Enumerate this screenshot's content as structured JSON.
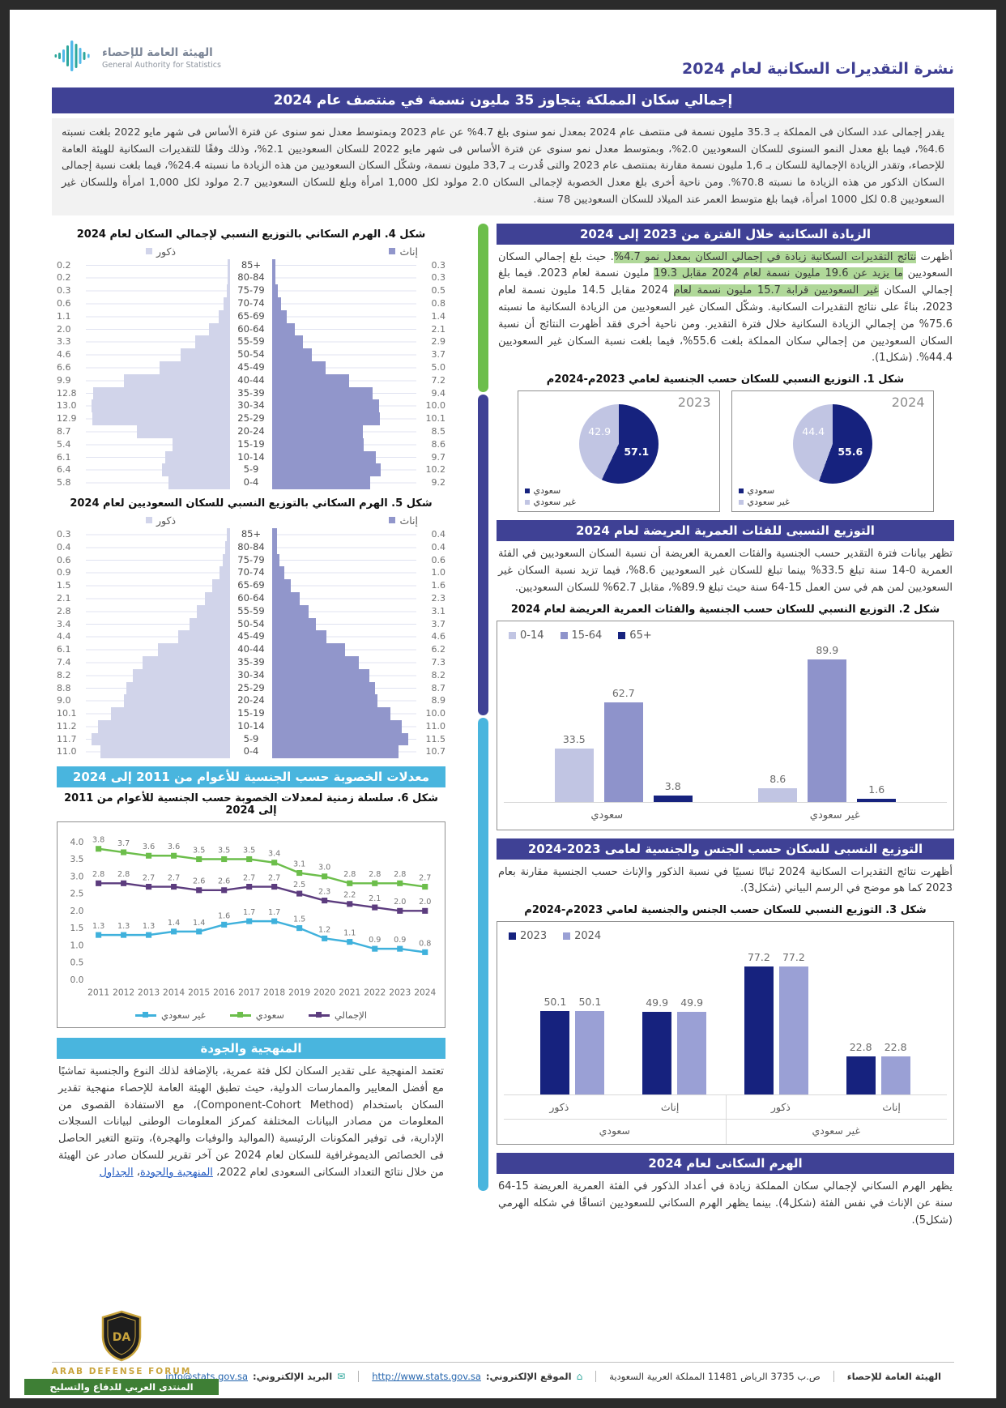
{
  "frame": {
    "bulletin_title": "نشرة التقديرات السكانية لعام 2024",
    "logo": {
      "ar": "الهيئة العامة للإحصاء",
      "en": "General Authority for Statistics"
    },
    "headline": "إجمالي سكان المملكة يتجاوز 35 مليون نسمة في منتصف عام 2024",
    "intro": "يقدر إجمالى عدد السكان فى المملكة بـ 35.3 مليون نسمة فى منتصف عام 2024 بمعدل نمو سنوى بلغ 4.7% عن عام 2023 وبمتوسط معدل نمو سنوى عن فترة الأساس فى شهر مايو 2022 بلغت نسبته 4.6%، فيما بلغ معدل النمو السنوى للسكان السعوديين 2.0%، وبمتوسط معدل نمو سنوى عن فترة الأساس فى شهر مايو 2022 للسكان السعوديين 2.1%، وذلك وفقًا للتقديرات السكانية للهيئة العامة للإحصاء، وتقدر الزيادة الإجمالية للسكان بـ 1,6 مليون نسمة مقارنة بمنتصف عام 2023 والتى قُدرت بـ 33,7 مليون نسمة، وشكّل السكان السعوديين من هذه الزيادة ما نسبته 24.4%، فيما بلغت نسبة إجمالى السكان الذكور من هذه الزيادة ما نسبته 70.8%. ومن ناحية أخرى بلغ معدل الخصوبة لإجمالى السكان 2.0 مولود لكل 1,000 امرأة وبلغ للسكان السعوديين 2.7 مولود لكل 1,000 امرأة وللسكان غير السعوديين 0.8 لكل 1000 امرأة، فيما بلغ متوسط العمر عند الميلاد للسكان السعوديين 78 سنة."
  },
  "theme": {
    "indigo": "#3f4195",
    "banner_cyan": "#49b5de",
    "navy": "#16227e",
    "lavender": "#c1c5e3",
    "midpurple": "#8e93cb",
    "bar2024": "#9aa0d5",
    "pyr_male": "#d1d4ea",
    "pyr_female": "#9196cb",
    "green": "#6cbe4b",
    "cyan": "#3fb1dc",
    "purple": "#5c3c7e",
    "highlight": "#7cbe55"
  },
  "sections": {
    "increase": {
      "title": "الزيادة السكانية خلال الفترة من 2023 إلى 2024",
      "body_segments": [
        {
          "text": "أظهرت ",
          "hl": false
        },
        {
          "text": "نتائج التقديرات السكانية زيادة في إجمالي السكان بمعدل نمو 4.7%",
          "hl": true
        },
        {
          "text": ". حيث بلغ إجمالي السكان السعوديين ",
          "hl": false
        },
        {
          "text": "ما يزيد عن 19.6 مليون نسمة لعام 2024 مقابل 19.3",
          "hl": true
        },
        {
          "text": " مليون نسمة لعام 2023. فيما بلغ إجمالي السكان ",
          "hl": false
        },
        {
          "text": "غير السعوديين قرابة 15.7 مليون نسمة لعام",
          "hl": true
        },
        {
          "text": " 2024 مقابل 14.5 مليون نسمة لعام 2023، بناءً على نتائج التقديرات السكانية. وشكّل السكان غير السعوديين من الزيادة السكانية ما نسبته 75.6% من إجمالي الزيادة السكانية خلال فترة التقدير. ومن ناحية أخرى فقد أظهرت النتائج أن نسبة السكان السعوديين من إجمالي سكان المملكة بلغت 55.6%، فيما بلغت نسبة السكان غير السعوديين 44.4%. (شكل1).",
          "hl": false
        }
      ]
    },
    "broad_age": {
      "title": "التوزيع النسبى للفئات العمرية العريضة لعام 2024",
      "body": "تظهر بيانات فترة التقدير حسب الجنسية والفئات العمرية العريضة أن نسبة السكان السعوديين في الفئة العمرية 0-14 سنة تبلغ 33.5% بينما تبلغ للسكان غير السعوديين 8.6%، فيما تزيد نسبة السكان غير السعوديين لمن هم في سن العمل 15-64 سنة حيث تبلغ 89.9%، مقابل 62.7% للسكان السعوديين."
    },
    "gender": {
      "title": "التوزيع النسبى للسكان حسب الجنس والجنسية لعامى 2023-2024",
      "body": "أظهرت نتائج التقديرات السكانية 2024 ثباتًا نسبيًا في نسبة الذكور والإناث حسب الجنسية مقارنة بعام 2023 كما هو موضح في الرسم البياني (شكل3)."
    },
    "pyramid_sec": {
      "title": "الهرم السكانى لعام 2024",
      "body": "يظهر الهرم السكاني لإجمالي سكان المملكة زيادة في أعداد الذكور في الفئة العمرية العريضة 15-64 سنة عن الإناث في نفس الفئة (شكل4). بينما يظهر الهرم السكاني للسعوديين اتساقًا في شكله الهرمي (شكل5)."
    },
    "fertility": {
      "title": "معدلات الخصوبة حسب الجنسية للأعوام من 2011 إلى 2024"
    },
    "methodology": {
      "title": "المنهجية والجودة",
      "body": "تعتمد المنهجية على تقدير السكان لكل فئة عمرية، بالإضافة لذلك النوع والجنسية تماشيًا مع أفضل المعايير والممارسات الدولية، حيث تطبق الهيئة العامة للإحصاء منهجية تقدير السكان باستخدام (Component-Cohort Method)، مع الاستفادة القصوى من المعلومات من مصادر البيانات المختلفة كمركز المعلومات الوطنى لبيانات السجلات الإدارية، فى توفير المكونات الرئيسية (المواليد والوفيات والهجرة)، وتتبع التغير الحاصل فى الخصائص الديموغرافية للسكان لعام 2024 عن آخر تقرير للسكان صادر عن الهيئة من خلال نتائج التعداد السكانى السعودى لعام 2022، ",
      "link_methodology": "المنهجية والجودة",
      "sep": "، ",
      "link_tables": "الجداول"
    }
  },
  "chart_data": [
    {
      "id": "fig1",
      "type": "pie",
      "title": "شكل 1. التوزيع النسبي للسكان حسب الجنسية لعامي 2023م-2024م",
      "pies": [
        {
          "year": "2023",
          "saudi": 57.1,
          "non_saudi": 42.9
        },
        {
          "year": "2024",
          "saudi": 55.6,
          "non_saudi": 44.4
        }
      ],
      "legend": [
        "سعودي",
        "غير سعودي"
      ]
    },
    {
      "id": "fig2",
      "type": "bar",
      "title": "شكل 2. التوزيع النسبي للسكان حسب الجنسية والفئات العمرية العريضة لعام 2024",
      "categories": [
        "سعودي",
        "غير سعودي"
      ],
      "series": [
        {
          "name": "0-14",
          "values": [
            33.5,
            8.6
          ]
        },
        {
          "name": "15-64",
          "values": [
            62.7,
            89.9
          ]
        },
        {
          "name": "65+",
          "values": [
            3.8,
            1.6
          ]
        }
      ],
      "ylim": [
        0,
        100
      ],
      "grid": false,
      "legend_position": "top-left"
    },
    {
      "id": "fig3",
      "type": "bar",
      "title": "شكل 3. التوزيع النسبي للسكان حسب الجنس والجنسية لعامي 2023م-2024م",
      "groups": [
        {
          "label": "سعودي",
          "subcats": [
            "ذكور",
            "إناث"
          ]
        },
        {
          "label": "غير سعودي",
          "subcats": [
            "ذكور",
            "إناث"
          ]
        }
      ],
      "series": [
        {
          "name": "2023",
          "values": [
            50.1,
            49.9,
            77.2,
            22.8
          ]
        },
        {
          "name": "2024",
          "values": [
            50.1,
            49.9,
            77.2,
            22.8
          ]
        }
      ],
      "ylim": [
        0,
        90
      ],
      "grid": false,
      "legend_position": "top-left"
    },
    {
      "id": "fig4",
      "type": "pyramid",
      "title": "شكل 4. الهرم السكاني بالتوزيع النسبي لإجمالي السكان لعام 2024",
      "legend": {
        "males": "ذكور",
        "females": "إناث"
      },
      "age_groups": [
        "85+",
        "80-84",
        "75-79",
        "70-74",
        "65-69",
        "60-64",
        "55-59",
        "50-54",
        "45-49",
        "40-44",
        "35-39",
        "30-34",
        "25-29",
        "20-24",
        "15-19",
        "10-14",
        "5-9",
        "0-4"
      ],
      "males": [
        0.2,
        0.2,
        0.3,
        0.6,
        1.1,
        2.0,
        3.3,
        4.6,
        6.6,
        9.9,
        12.8,
        13.0,
        12.9,
        8.7,
        5.4,
        6.1,
        6.4,
        5.8
      ],
      "females": [
        0.3,
        0.3,
        0.5,
        0.8,
        1.4,
        2.1,
        2.9,
        3.7,
        5.0,
        7.2,
        9.4,
        10.0,
        10.1,
        8.5,
        8.6,
        9.7,
        10.2,
        9.2
      ],
      "xmax": 13.5
    },
    {
      "id": "fig5",
      "type": "pyramid",
      "title": "شكل 5. الهرم السكاني بالتوزيع النسبي للسكان السعوديين لعام 2024",
      "legend": {
        "males": "ذكور",
        "females": "إناث"
      },
      "age_groups": [
        "85+",
        "80-84",
        "75-79",
        "70-74",
        "65-69",
        "60-64",
        "55-59",
        "50-54",
        "45-49",
        "40-44",
        "35-39",
        "30-34",
        "25-29",
        "20-24",
        "15-19",
        "10-14",
        "5-9",
        "0-4"
      ],
      "males": [
        0.3,
        0.4,
        0.6,
        0.9,
        1.5,
        2.1,
        2.8,
        3.4,
        4.4,
        6.1,
        7.4,
        8.2,
        8.8,
        9.0,
        10.1,
        11.2,
        11.7,
        11.0
      ],
      "females": [
        0.4,
        0.4,
        0.6,
        1.0,
        1.6,
        2.3,
        3.1,
        3.7,
        4.6,
        6.2,
        7.3,
        8.2,
        8.7,
        8.9,
        10.0,
        11.0,
        11.5,
        10.7
      ],
      "xmax": 12.2
    },
    {
      "id": "fig6",
      "type": "line",
      "title": "شكل 6. سلسلة زمنية لمعدلات الخصوبة حسب الجنسية للأعوام من 2011 إلى 2024",
      "x": [
        2011,
        2012,
        2013,
        2014,
        2015,
        2016,
        2017,
        2018,
        2019,
        2020,
        2021,
        2022,
        2023,
        2024
      ],
      "series": [
        {
          "name": "غير سعودي",
          "color": "#3fb1dc",
          "values": [
            1.3,
            1.3,
            1.3,
            1.4,
            1.4,
            1.6,
            1.7,
            1.7,
            1.5,
            1.2,
            1.1,
            0.9,
            0.9,
            0.8
          ]
        },
        {
          "name": "سعودي",
          "color": "#6cbe4b",
          "values": [
            3.8,
            3.7,
            3.6,
            3.6,
            3.5,
            3.5,
            3.5,
            3.4,
            3.1,
            3.0,
            2.8,
            2.8,
            2.8,
            2.7
          ]
        },
        {
          "name": "الإجمالي",
          "color": "#5c3c7e",
          "values": [
            2.8,
            2.8,
            2.7,
            2.7,
            2.6,
            2.6,
            2.7,
            2.7,
            2.5,
            2.3,
            2.2,
            2.1,
            2.0,
            2.0
          ]
        }
      ],
      "ylim": [
        0,
        4.0
      ],
      "ytick": 0.5,
      "grid": false,
      "legend_position": "bottom"
    }
  ],
  "footer": {
    "org": "الهيئة العامة للإحصاء",
    "address": "ص.ب 3735 الرياض 11481 المملكة العربية السعودية",
    "website_label": "الموقع الإلكتروني:",
    "website": "http://www.stats.gov.sa",
    "email_label": "البريد الإلكتروني:",
    "email": "info@stats.gov.sa"
  },
  "watermark": {
    "line1": "ARAB DEFENSE FORUM",
    "line2": "المنتدى العربي للدفاع والتسليح"
  }
}
